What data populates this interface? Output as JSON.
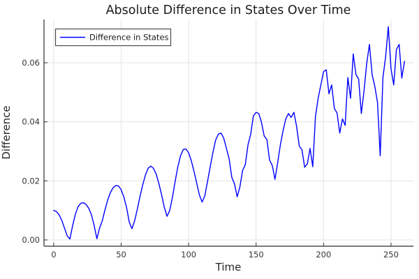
{
  "page": {
    "background": "#ffffff"
  },
  "chart_data": {
    "type": "line",
    "title": "Absolute Difference in States Over Time",
    "xlabel": "Time",
    "ylabel": "Difference",
    "grid": true,
    "xlim": [
      -7.2,
      266.6
    ],
    "ylim": [
      -0.00213,
      0.07464
    ],
    "xticks": {
      "values": [
        0,
        50,
        100,
        150,
        200,
        250
      ],
      "labels": [
        "0",
        "50",
        "100",
        "150",
        "200",
        "250"
      ]
    },
    "yticks": {
      "values": [
        0.0,
        0.02,
        0.04,
        0.06
      ],
      "labels": [
        "0.00",
        "0.02",
        "0.04",
        "0.06"
      ]
    },
    "legend": {
      "position": "top-left",
      "entries": [
        {
          "label": "Difference in States",
          "color": "#0000ff"
        }
      ]
    },
    "colors": {
      "line": "#0000ff",
      "grid": "#e3e3e3",
      "axis": "#2e2e2e",
      "legend_border": "#4a4a4a"
    },
    "series": [
      {
        "name": "Difference in States",
        "color": "#0000ff",
        "t0": 0,
        "dt": 2,
        "values": [
          0.01,
          0.0096,
          0.0085,
          0.0066,
          0.004,
          0.0014,
          0.0003,
          0.0048,
          0.0086,
          0.0112,
          0.0124,
          0.0126,
          0.012,
          0.0107,
          0.0085,
          0.0048,
          0.0004,
          0.004,
          0.0065,
          0.0102,
          0.0135,
          0.016,
          0.0177,
          0.0184,
          0.0183,
          0.017,
          0.0145,
          0.011,
          0.006,
          0.0038,
          0.0065,
          0.0105,
          0.0148,
          0.0187,
          0.022,
          0.0243,
          0.025,
          0.0242,
          0.0222,
          0.019,
          0.0152,
          0.011,
          0.008,
          0.01,
          0.0145,
          0.0198,
          0.0248,
          0.0285,
          0.0306,
          0.0308,
          0.0295,
          0.0268,
          0.0232,
          0.0192,
          0.0152,
          0.0128,
          0.015,
          0.0198,
          0.0248,
          0.0296,
          0.0338,
          0.0358,
          0.0362,
          0.0345,
          0.031,
          0.0275,
          0.0212,
          0.019,
          0.0146,
          0.018,
          0.0235,
          0.0255,
          0.0322,
          0.0358,
          0.042,
          0.0432,
          0.0428,
          0.0398,
          0.0352,
          0.034,
          0.027,
          0.0252,
          0.0205,
          0.0262,
          0.0322,
          0.037,
          0.041,
          0.0428,
          0.0415,
          0.0432,
          0.0385,
          0.0318,
          0.0305,
          0.0246,
          0.0258,
          0.031,
          0.0248,
          0.0418,
          0.048,
          0.0525,
          0.057,
          0.0576,
          0.0495,
          0.0525,
          0.0445,
          0.043,
          0.0362,
          0.041,
          0.0388,
          0.055,
          0.048,
          0.063,
          0.056,
          0.0545,
          0.0428,
          0.0505,
          0.0598,
          0.0662,
          0.056,
          0.052,
          0.0465,
          0.0285,
          0.055,
          0.062,
          0.0722,
          0.058,
          0.0525,
          0.0645,
          0.0662,
          0.0548,
          0.0605
        ]
      }
    ]
  }
}
